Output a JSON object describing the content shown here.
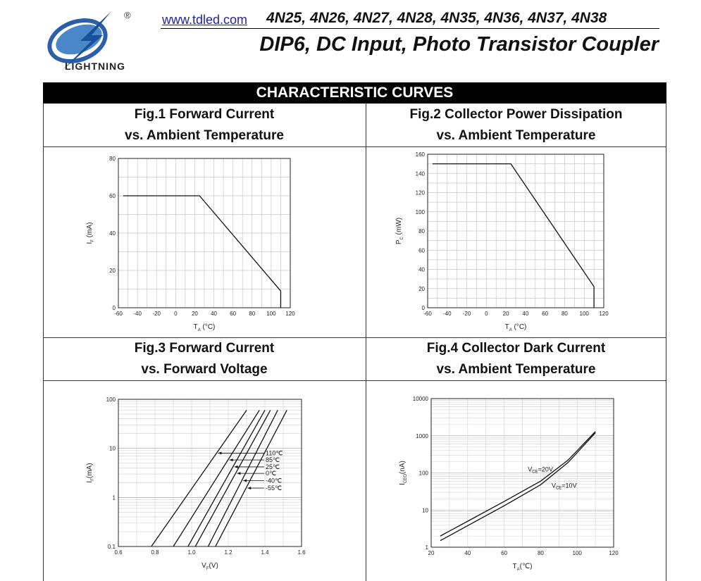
{
  "header": {
    "url": "www.tdled.com",
    "parts": "4N25, 4N26, 4N27, 4N28, 4N35, 4N36, 4N37, 4N38",
    "subtitle": "DIP6,  DC  Input,  Photo  Transistor  Coupler",
    "logo_text": "LIGHTNING",
    "logo_mark": "®"
  },
  "section_title": "CHARACTERISTIC CURVES",
  "figures": [
    {
      "title1": "Fig.1 Forward Current",
      "title2": "vs. Ambient Temperature"
    },
    {
      "title1": "Fig.2 Collector Power Dissipation",
      "title2": "vs. Ambient Temperature"
    },
    {
      "title1": "Fig.3 Forward Current",
      "title2": "vs. Forward Voltage"
    },
    {
      "title1": "Fig.4 Collector Dark Current",
      "title2": "vs. Ambient Temperature"
    }
  ],
  "chart_data": [
    {
      "type": "line",
      "xlabel": "T",
      "xsub": "A",
      "xunit": " (°C)",
      "ylabel": "I",
      "ysub": "F",
      "yunit": " (mA)",
      "xlim": [
        -60,
        120
      ],
      "ylim": [
        0,
        80
      ],
      "xticks": [
        "-60",
        "-40",
        "-20",
        "0",
        "20",
        "40",
        "60",
        "80",
        "100",
        "120"
      ],
      "yticks": [
        "0",
        "20",
        "40",
        "60",
        "80"
      ],
      "series": [
        {
          "x": [
            -55,
            25,
            110,
            110
          ],
          "y": [
            60,
            60,
            9,
            0
          ]
        }
      ],
      "grid": true
    },
    {
      "type": "line",
      "xlabel": "T",
      "xsub": "A",
      "xunit": " (°C)",
      "ylabel": "P",
      "ysub": "C",
      "yunit": " (mW)",
      "xlim": [
        -60,
        120
      ],
      "ylim": [
        0,
        160
      ],
      "xticks": [
        "-60",
        "-40",
        "-20",
        "0",
        "20",
        "40",
        "60",
        "80",
        "100",
        "120"
      ],
      "yticks": [
        "0",
        "20",
        "40",
        "60",
        "80",
        "100",
        "120",
        "140",
        "160"
      ],
      "series": [
        {
          "x": [
            -55,
            25,
            110,
            110
          ],
          "y": [
            150,
            150,
            22,
            0
          ]
        }
      ],
      "grid": true
    },
    {
      "type": "line",
      "xlabel": "V",
      "xsub": "F",
      "xunit": "(V)",
      "ylabel": "I",
      "ysub": "F",
      "yunit": "(mA)",
      "xlim": [
        0.6,
        1.6
      ],
      "ylim": [
        0.1,
        100
      ],
      "yscale": "log",
      "xticks": [
        "0.6",
        "0.8",
        "1.0",
        "1.2",
        "1.4",
        "1.6"
      ],
      "yticks": [
        "0.1",
        "1",
        "10",
        "100"
      ],
      "series": [
        {
          "name": "110℃",
          "x": [
            0.78,
            1.3
          ],
          "y": [
            0.1,
            60
          ]
        },
        {
          "name": "85℃",
          "x": [
            0.9,
            1.37
          ],
          "y": [
            0.1,
            60
          ]
        },
        {
          "name": "25℃",
          "x": [
            0.98,
            1.4
          ],
          "y": [
            0.1,
            60
          ]
        },
        {
          "name": "0℃",
          "x": [
            1.02,
            1.43
          ],
          "y": [
            0.1,
            60
          ]
        },
        {
          "name": "-40℃",
          "x": [
            1.09,
            1.47
          ],
          "y": [
            0.1,
            60
          ]
        },
        {
          "name": "-55℃",
          "x": [
            1.13,
            1.52
          ],
          "y": [
            0.1,
            60
          ]
        }
      ],
      "grid": true
    },
    {
      "type": "line",
      "xlabel": "T",
      "xsub": "A",
      "xunit": "(℃)",
      "ylabel": "I",
      "ysub": "CEO",
      "yunit": "(nA)",
      "xlim": [
        20,
        120
      ],
      "ylim": [
        1,
        10000
      ],
      "yscale": "log",
      "xticks": [
        "20",
        "40",
        "60",
        "80",
        "100",
        "120"
      ],
      "yticks": [
        "1",
        "10",
        "100",
        "1000",
        "10000"
      ],
      "series": [
        {
          "name": "V_CE=20V",
          "x": [
            25,
            40,
            60,
            80,
            95,
            110
          ],
          "y": [
            2,
            5,
            17,
            60,
            220,
            1300
          ]
        },
        {
          "name": "V_CE=10V",
          "x": [
            25,
            40,
            60,
            80,
            95,
            110
          ],
          "y": [
            1.5,
            3.8,
            13,
            48,
            190,
            1200
          ]
        }
      ],
      "grid": true
    }
  ]
}
